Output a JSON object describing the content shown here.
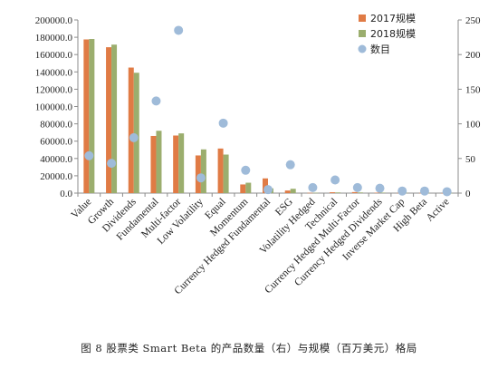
{
  "chart_data": {
    "type": "bar",
    "categories": [
      "Value",
      "Growth",
      "Dividends",
      "Fundamental",
      "Multi-factor",
      "Low Volatility",
      "Equal",
      "Momentum",
      "Currency Hedged Fundamental",
      "ESG",
      "Volatility Hedged",
      "Technical",
      "Currency Hedged Multi-Factor",
      "Currency Hedged Dividends",
      "Inverse Market Cap",
      "High Beta",
      "Active"
    ],
    "series": [
      {
        "name": "2017规模",
        "axis": "left",
        "type": "bar",
        "color": "#e07b45",
        "values": [
          177500,
          168500,
          145000,
          66000,
          66500,
          43500,
          51500,
          10000,
          17000,
          3000,
          300,
          1000,
          1200,
          500,
          300,
          200,
          100
        ]
      },
      {
        "name": "2018规模",
        "axis": "left",
        "type": "bar",
        "color": "#9bae6e",
        "values": [
          178000,
          171500,
          139000,
          72000,
          69000,
          50500,
          44500,
          12000,
          5500,
          5000,
          400,
          800,
          800,
          600,
          400,
          300,
          100
        ]
      },
      {
        "name": "数目",
        "axis": "right",
        "type": "scatter",
        "color": "#9fbbd9",
        "values": [
          54,
          43,
          80,
          133,
          235,
          22,
          101,
          33,
          5,
          41,
          8,
          19,
          8,
          7,
          3,
          3,
          2
        ]
      }
    ],
    "ylim_left": [
      0,
      200000
    ],
    "yticks_left": [
      "0.0",
      "20000.0",
      "40000.0",
      "60000.0",
      "80000.0",
      "100000.0",
      "120000.0",
      "140000.0",
      "160000.0",
      "180000.0",
      "200000.0"
    ],
    "ylim_right": [
      0,
      250
    ],
    "yticks_right": [
      "0",
      "50",
      "100",
      "150",
      "200",
      "250"
    ],
    "legend_position": "top-right",
    "grid": false
  },
  "caption": "图 8 股票类 Smart Beta 的产品数量（右）与规模（百万美元）格局"
}
